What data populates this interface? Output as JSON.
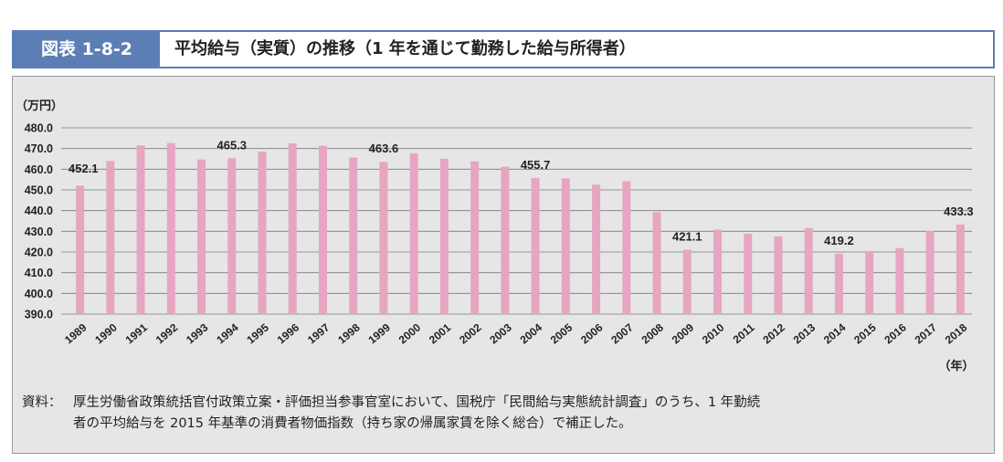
{
  "header": {
    "figure_label": "図表 1-8-2",
    "title": "平均給与（実質）の推移（1 年を通じて勤務した給与所得者）"
  },
  "source": {
    "label": "資料：",
    "lines": [
      "厚生労働省政策統括官付政策立案・評価担当参事官室において、国税庁「民間給与実態統計調査」のうち、1 年勤続",
      "者の平均給与を 2015 年基準の消費者物価指数（持ち家の帰属家賃を除く総合）で補正した。"
    ]
  },
  "colors": {
    "bar": "#e6a6c1",
    "accent": "#5b7fb5",
    "panel": "#e6e6e6"
  },
  "chart_data": {
    "type": "bar",
    "ylabel": "（万円）",
    "xlabel": "（年）",
    "ylim": [
      390,
      480
    ],
    "yticks": [
      "390.0",
      "400.0",
      "410.0",
      "420.0",
      "430.0",
      "440.0",
      "450.0",
      "460.0",
      "470.0",
      "480.0"
    ],
    "categories": [
      "1989",
      "1990",
      "1991",
      "1992",
      "1993",
      "1994",
      "1995",
      "1996",
      "1997",
      "1998",
      "1999",
      "2000",
      "2001",
      "2002",
      "2003",
      "2004",
      "2005",
      "2006",
      "2007",
      "2008",
      "2009",
      "2010",
      "2011",
      "2012",
      "2013",
      "2014",
      "2015",
      "2016",
      "2017",
      "2018"
    ],
    "values": [
      452.1,
      464,
      471.5,
      472.7,
      464.7,
      465.3,
      468.5,
      472.5,
      471.3,
      465.6,
      463.6,
      467.7,
      465.1,
      463.8,
      461.2,
      455.7,
      455.6,
      452.5,
      454.2,
      439.3,
      421.1,
      430.8,
      428.8,
      427.5,
      431.6,
      419.2,
      420,
      421.9,
      430.3,
      433.3
    ],
    "data_labels": [
      {
        "category": "1989",
        "text": "452.1"
      },
      {
        "category": "1994",
        "text": "465.3"
      },
      {
        "category": "1999",
        "text": "463.6"
      },
      {
        "category": "2004",
        "text": "455.7"
      },
      {
        "category": "2009",
        "text": "421.1"
      },
      {
        "category": "2014",
        "text": "419.2"
      },
      {
        "category": "2018",
        "text": "433.3"
      }
    ],
    "grid": true,
    "legend": "none"
  }
}
